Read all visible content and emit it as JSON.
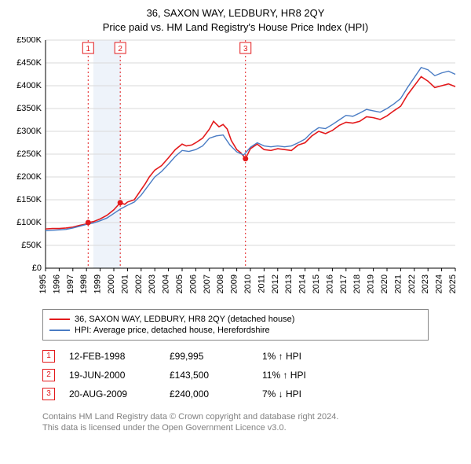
{
  "title1": "36, SAXON WAY, LEDBURY, HR8 2QY",
  "title2": "Price paid vs. HM Land Registry's House Price Index (HPI)",
  "chart": {
    "type": "line",
    "background_color": "#ffffff",
    "grid_color": "#d9d9d9",
    "axis_color": "#000000",
    "x": {
      "min": 1995,
      "max": 2025,
      "ticks": [
        1995,
        1996,
        1997,
        1998,
        1999,
        2000,
        2001,
        2002,
        2003,
        2004,
        2005,
        2006,
        2007,
        2008,
        2009,
        2010,
        2011,
        2012,
        2013,
        2014,
        2015,
        2016,
        2017,
        2018,
        2019,
        2020,
        2021,
        2022,
        2023,
        2024,
        2025
      ]
    },
    "y": {
      "min": 0,
      "max": 500000,
      "tick_step": 50000,
      "tick_labels": [
        "£0",
        "£50K",
        "£100K",
        "£150K",
        "£200K",
        "£250K",
        "£300K",
        "£350K",
        "£400K",
        "£450K",
        "£500K"
      ]
    },
    "highlight_band": {
      "from": 1998.5,
      "to": 2000.5,
      "fill": "#eef3fa"
    },
    "event_lines": [
      {
        "x": 1998.12,
        "color": "#e31a1c",
        "label": "1"
      },
      {
        "x": 2000.47,
        "color": "#e31a1c",
        "label": "2"
      },
      {
        "x": 2009.64,
        "color": "#e31a1c",
        "label": "3"
      }
    ],
    "series": [
      {
        "name": "36, SAXON WAY, LEDBURY, HR8 2QY (detached house)",
        "color": "#e31a1c",
        "width": 1.6,
        "points": [
          [
            1995,
            86000
          ],
          [
            1995.5,
            87000
          ],
          [
            1996,
            87000
          ],
          [
            1996.5,
            88000
          ],
          [
            1997,
            90000
          ],
          [
            1997.5,
            94000
          ],
          [
            1998,
            97000
          ],
          [
            1998.12,
            99995
          ],
          [
            1998.5,
            102000
          ],
          [
            1999,
            108000
          ],
          [
            1999.5,
            116000
          ],
          [
            2000,
            128000
          ],
          [
            2000.47,
            143500
          ],
          [
            2000.8,
            140000
          ],
          [
            2001,
            145000
          ],
          [
            2001.5,
            150000
          ],
          [
            2002,
            172000
          ],
          [
            2002.3,
            185000
          ],
          [
            2002.6,
            200000
          ],
          [
            2003,
            215000
          ],
          [
            2003.5,
            225000
          ],
          [
            2004,
            242000
          ],
          [
            2004.5,
            260000
          ],
          [
            2005,
            272000
          ],
          [
            2005.3,
            268000
          ],
          [
            2005.7,
            270000
          ],
          [
            2006,
            275000
          ],
          [
            2006.5,
            285000
          ],
          [
            2007,
            305000
          ],
          [
            2007.3,
            322000
          ],
          [
            2007.7,
            310000
          ],
          [
            2008,
            315000
          ],
          [
            2008.3,
            305000
          ],
          [
            2008.6,
            280000
          ],
          [
            2009,
            260000
          ],
          [
            2009.3,
            253000
          ],
          [
            2009.64,
            240000
          ],
          [
            2010,
            262000
          ],
          [
            2010.5,
            272000
          ],
          [
            2011,
            260000
          ],
          [
            2011.5,
            258000
          ],
          [
            2012,
            262000
          ],
          [
            2012.5,
            260000
          ],
          [
            2013,
            258000
          ],
          [
            2013.5,
            270000
          ],
          [
            2014,
            275000
          ],
          [
            2014.5,
            290000
          ],
          [
            2015,
            300000
          ],
          [
            2015.5,
            295000
          ],
          [
            2016,
            302000
          ],
          [
            2016.5,
            313000
          ],
          [
            2017,
            320000
          ],
          [
            2017.5,
            318000
          ],
          [
            2018,
            322000
          ],
          [
            2018.5,
            332000
          ],
          [
            2019,
            330000
          ],
          [
            2019.5,
            326000
          ],
          [
            2020,
            334000
          ],
          [
            2020.5,
            345000
          ],
          [
            2021,
            355000
          ],
          [
            2021.5,
            380000
          ],
          [
            2022,
            400000
          ],
          [
            2022.5,
            420000
          ],
          [
            2023,
            410000
          ],
          [
            2023.5,
            396000
          ],
          [
            2024,
            400000
          ],
          [
            2024.5,
            404000
          ],
          [
            2025,
            398000
          ]
        ]
      },
      {
        "name": "HPI: Average price, detached house, Herefordshire",
        "color": "#4a7cc4",
        "width": 1.4,
        "points": [
          [
            1995,
            82000
          ],
          [
            1995.5,
            83000
          ],
          [
            1996,
            84000
          ],
          [
            1996.5,
            85000
          ],
          [
            1997,
            88000
          ],
          [
            1997.5,
            92000
          ],
          [
            1998,
            96000
          ],
          [
            1998.5,
            99000
          ],
          [
            1999,
            104000
          ],
          [
            1999.5,
            110000
          ],
          [
            2000,
            120000
          ],
          [
            2000.5,
            130000
          ],
          [
            2001,
            138000
          ],
          [
            2001.5,
            145000
          ],
          [
            2002,
            160000
          ],
          [
            2002.5,
            180000
          ],
          [
            2003,
            200000
          ],
          [
            2003.5,
            212000
          ],
          [
            2004,
            228000
          ],
          [
            2004.5,
            245000
          ],
          [
            2005,
            258000
          ],
          [
            2005.5,
            256000
          ],
          [
            2006,
            260000
          ],
          [
            2006.5,
            268000
          ],
          [
            2007,
            285000
          ],
          [
            2007.5,
            290000
          ],
          [
            2008,
            292000
          ],
          [
            2008.5,
            270000
          ],
          [
            2009,
            255000
          ],
          [
            2009.5,
            248000
          ],
          [
            2010,
            265000
          ],
          [
            2010.5,
            275000
          ],
          [
            2011,
            268000
          ],
          [
            2011.5,
            266000
          ],
          [
            2012,
            268000
          ],
          [
            2012.5,
            266000
          ],
          [
            2013,
            268000
          ],
          [
            2013.5,
            275000
          ],
          [
            2014,
            283000
          ],
          [
            2014.5,
            298000
          ],
          [
            2015,
            308000
          ],
          [
            2015.5,
            306000
          ],
          [
            2016,
            315000
          ],
          [
            2016.5,
            325000
          ],
          [
            2017,
            335000
          ],
          [
            2017.5,
            333000
          ],
          [
            2018,
            340000
          ],
          [
            2018.5,
            348000
          ],
          [
            2019,
            345000
          ],
          [
            2019.5,
            342000
          ],
          [
            2020,
            350000
          ],
          [
            2020.5,
            360000
          ],
          [
            2021,
            372000
          ],
          [
            2021.5,
            396000
          ],
          [
            2022,
            418000
          ],
          [
            2022.5,
            440000
          ],
          [
            2023,
            435000
          ],
          [
            2023.5,
            422000
          ],
          [
            2024,
            428000
          ],
          [
            2024.5,
            432000
          ],
          [
            2025,
            425000
          ]
        ]
      }
    ],
    "sale_markers": [
      {
        "x": 1998.12,
        "y": 99995,
        "color": "#e31a1c"
      },
      {
        "x": 2000.47,
        "y": 143500,
        "color": "#e31a1c"
      },
      {
        "x": 2009.64,
        "y": 240000,
        "color": "#e31a1c"
      }
    ]
  },
  "legend": [
    {
      "label": "36, SAXON WAY, LEDBURY, HR8 2QY (detached house)",
      "color": "#e31a1c"
    },
    {
      "label": "HPI: Average price, detached house, Herefordshire",
      "color": "#4a7cc4"
    }
  ],
  "sales": [
    {
      "num": "1",
      "color": "#e31a1c",
      "date": "12-FEB-1998",
      "price": "£99,995",
      "delta": "1% ↑ HPI"
    },
    {
      "num": "2",
      "color": "#e31a1c",
      "date": "19-JUN-2000",
      "price": "£143,500",
      "delta": "11% ↑ HPI"
    },
    {
      "num": "3",
      "color": "#e31a1c",
      "date": "20-AUG-2009",
      "price": "£240,000",
      "delta": "7% ↓ HPI"
    }
  ],
  "footer1": "Contains HM Land Registry data © Crown copyright and database right 2024.",
  "footer2": "This data is licensed under the Open Government Licence v3.0."
}
